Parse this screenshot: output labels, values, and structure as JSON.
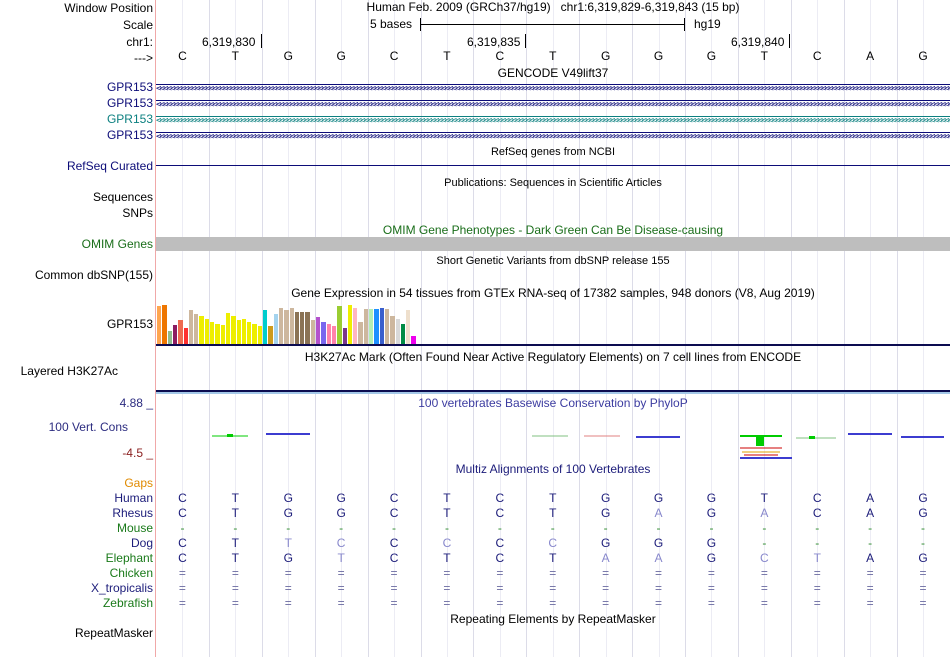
{
  "header": {
    "assembly": "Human Feb. 2009 (GRCh37/hg19)",
    "position": "chr1:6,319,829-6,319,843 (15 bp)",
    "scale": "5 bases",
    "scale_db": "hg19",
    "ticks": [
      "6,319,830",
      "6,319,835",
      "6,319,840"
    ]
  },
  "labels": {
    "window_position": "Window Position",
    "scale": "Scale",
    "chr": "chr1:",
    "arrow": "--->",
    "gpr153_1": "GPR153",
    "gpr153_2": "GPR153",
    "gpr153_3": "GPR153",
    "gpr153_4": "GPR153",
    "refseq": "RefSeq Curated",
    "sequences": "Sequences",
    "snps": "SNPs",
    "omim": "OMIM Genes",
    "common_dbsnp": "Common dbSNP(155)",
    "gtex_gene": "GPR153",
    "h3k27ac": "Layered H3K27Ac",
    "phylo_max": "4.88 _",
    "vert_cons": "100 Vert. Cons",
    "phylo_min": "-4.5 _",
    "gaps": "Gaps",
    "repeatmasker": "RepeatMasker"
  },
  "sequence": [
    "C",
    "T",
    "G",
    "G",
    "C",
    "T",
    "C",
    "T",
    "G",
    "G",
    "G",
    "T",
    "C",
    "A",
    "G"
  ],
  "titles": {
    "gencode": "GENCODE V49lift37",
    "refseq": "RefSeq genes from NCBI",
    "publications": "Publications: Sequences in Scientific Articles",
    "omim": "OMIM Gene Phenotypes - Dark Green Can Be Disease-causing",
    "dbsnp": "Short Genetic Variants from dbSNP release 155",
    "gtex": "Gene Expression in 54 tissues from GTEx RNA-seq of 17382 samples, 948 donors (V8, Aug 2019)",
    "h3k27ac": "H3K27Ac Mark (Often Found Near Active Regulatory Elements) on 7 cell lines from ENCODE",
    "phylop": "100 vertebrates Basewise Conservation by PhyloP",
    "multiz": "Multiz Alignments of 100 Vertebrates",
    "repeatmasker": "Repeating Elements by RepeatMasker"
  },
  "gene_arrows": "<<<<<<<<<<<<<<<<<<<<<<<<<<<<<<<<<<<<<<<<<<<<<<<<<<<<<<<<<<<<<<<<<<<<<<<<<<<<<<<<<<<<<<<<<<<<<<<<<<<<<<<<<<<<<<<<<<<<<<<<<<<<<<<<<<<<<<<<<<<<<<<<<<<<<<<<<<<<<<<<<<<<<<<<<<<<<<<<<<<<<<<<<<<<<<<<<<<<<<<<<<<<<<<<<<<<<<<<<<<<<<<<<<<<<<<<<<<<<<<<<<<<<<<<<<<<<<<<<<<<<<<<<<<<<<<<<<<<<<<<",
  "gtex_values": [
    {
      "v": 0.95,
      "c": "#ffa54f"
    },
    {
      "v": 0.98,
      "c": "#ee7600"
    },
    {
      "v": 0.32,
      "c": "#8fbc8f"
    },
    {
      "v": 0.48,
      "c": "#8b1c62"
    },
    {
      "v": 0.6,
      "c": "#ee6a50"
    },
    {
      "v": 0.4,
      "c": "#ff3030"
    },
    {
      "v": 0.85,
      "c": "#cdb79e"
    },
    {
      "v": 0.75,
      "c": "#cdb79e"
    },
    {
      "v": 0.7,
      "c": "#eeee00"
    },
    {
      "v": 0.62,
      "c": "#eeee00"
    },
    {
      "v": 0.55,
      "c": "#eeee00"
    },
    {
      "v": 0.5,
      "c": "#eeee00"
    },
    {
      "v": 0.48,
      "c": "#eeee00"
    },
    {
      "v": 0.78,
      "c": "#eeee00"
    },
    {
      "v": 0.7,
      "c": "#eeee00"
    },
    {
      "v": 0.6,
      "c": "#eeee00"
    },
    {
      "v": 0.62,
      "c": "#eeee00"
    },
    {
      "v": 0.55,
      "c": "#eeee00"
    },
    {
      "v": 0.5,
      "c": "#eeee00"
    },
    {
      "v": 0.45,
      "c": "#eeee00"
    },
    {
      "v": 0.85,
      "c": "#00cdcd"
    },
    {
      "v": 0.45,
      "c": "#cd9b1d"
    },
    {
      "v": 0.75,
      "c": "#a4d3ee"
    },
    {
      "v": 0.9,
      "c": "#cdb79e"
    },
    {
      "v": 0.85,
      "c": "#cdb79e"
    },
    {
      "v": 0.9,
      "c": "#cdb79e"
    },
    {
      "v": 0.8,
      "c": "#8b7355"
    },
    {
      "v": 0.8,
      "c": "#8b7355"
    },
    {
      "v": 0.8,
      "c": "#8b7355"
    },
    {
      "v": 0.6,
      "c": "#cdb79e"
    },
    {
      "v": 0.68,
      "c": "#b452cd"
    },
    {
      "v": 0.55,
      "c": "#7a67ee"
    },
    {
      "v": 0.5,
      "c": "#ff82ab"
    },
    {
      "v": 0.45,
      "c": "#ff82ab"
    },
    {
      "v": 0.95,
      "c": "#9acd32"
    },
    {
      "v": 0.4,
      "c": "#7a378b"
    },
    {
      "v": 0.98,
      "c": "#eeee00"
    },
    {
      "v": 0.9,
      "c": "#ffb6c1"
    },
    {
      "v": 0.55,
      "c": "#cdb79e"
    },
    {
      "v": 0.88,
      "c": "#cdb79e"
    },
    {
      "v": 0.88,
      "c": "#b4eeb4"
    },
    {
      "v": 0.88,
      "c": "#1e90ff"
    },
    {
      "v": 0.9,
      "c": "#3a5fcd"
    },
    {
      "v": 0.88,
      "c": "#cdb79e"
    },
    {
      "v": 0.7,
      "c": "#cdb79e"
    },
    {
      "v": 0.62,
      "c": "#d9d9d9"
    },
    {
      "v": 0.5,
      "c": "#008b45"
    },
    {
      "v": 0.85,
      "c": "#eedfcc"
    },
    {
      "v": 0.2,
      "c": "#ee00ee"
    }
  ],
  "multiz": [
    {
      "species": "Human",
      "color": "#1c1c7a",
      "bases": [
        "C",
        "T",
        "G",
        "G",
        "C",
        "T",
        "C",
        "T",
        "G",
        "G",
        "G",
        "T",
        "C",
        "A",
        "G"
      ]
    },
    {
      "species": "Rhesus",
      "color": "#1c1c7a",
      "bases": [
        "C",
        "T",
        "G",
        "G",
        "C",
        "T",
        "C",
        "T",
        "G",
        "A",
        "G",
        "A",
        "C",
        "A",
        "G"
      ]
    },
    {
      "species": "Mouse",
      "color": "#1a7a1a",
      "bases": [
        "-",
        "-",
        "-",
        "-",
        "-",
        "-",
        "-",
        "-",
        "-",
        "-",
        "-",
        "-",
        "-",
        "-",
        "-"
      ]
    },
    {
      "species": "Dog",
      "color": "#1c1c7a",
      "bases": [
        "C",
        "T",
        "T",
        "C",
        "C",
        "C",
        "C",
        "C",
        "G",
        "G",
        "G",
        "-",
        "-",
        "-",
        "-"
      ]
    },
    {
      "species": "Elephant",
      "color": "#1a7a1a",
      "bases": [
        "C",
        "T",
        "G",
        "T",
        "C",
        "T",
        "C",
        "T",
        "A",
        "A",
        "G",
        "C",
        "T",
        "A",
        "G"
      ]
    },
    {
      "species": "Chicken",
      "color": "#1a7a1a",
      "bases": [
        "=",
        "=",
        "=",
        "=",
        "=",
        "=",
        "=",
        "=",
        "=",
        "=",
        "=",
        "=",
        "=",
        "=",
        "="
      ]
    },
    {
      "species": "X_tropicalis",
      "color": "#1c1c7a",
      "bases": [
        "=",
        "=",
        "=",
        "=",
        "=",
        "=",
        "=",
        "=",
        "=",
        "=",
        "=",
        "=",
        "=",
        "=",
        "="
      ]
    },
    {
      "species": "Zebrafish",
      "color": "#1a7a1a",
      "bases": [
        "=",
        "=",
        "=",
        "=",
        "=",
        "=",
        "=",
        "=",
        "=",
        "=",
        "=",
        "=",
        "=",
        "=",
        "="
      ]
    }
  ],
  "colors": {
    "gene_dark": "#0c0c78",
    "gene_teal": "#0c8080",
    "omim_bar": "#bebebe",
    "phylop_pos": "#00cc00",
    "phylop_neg": "#cc0000",
    "phylop_blue": "#3c3cd0"
  }
}
